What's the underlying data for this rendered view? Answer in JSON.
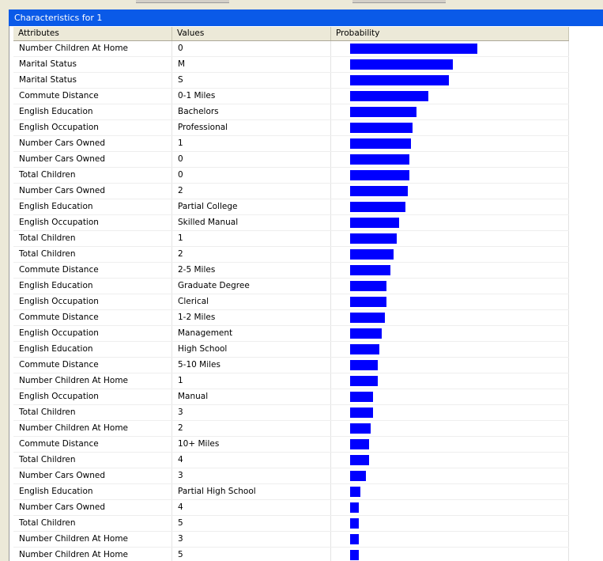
{
  "title": "Characteristics for 1",
  "columns": {
    "attributes": "Attributes",
    "values": "Values",
    "probability": "Probability"
  },
  "colors": {
    "bar": "#0000ff",
    "titlebar": "#0a5ae8"
  },
  "rows": [
    {
      "attribute": "Number Children At Home",
      "value": "0",
      "probability": 0.73
    },
    {
      "attribute": "Marital Status",
      "value": "M",
      "probability": 0.59
    },
    {
      "attribute": "Marital Status",
      "value": "S",
      "probability": 0.57
    },
    {
      "attribute": "Commute Distance",
      "value": "0-1 Miles",
      "probability": 0.45
    },
    {
      "attribute": "English Education",
      "value": "Bachelors",
      "probability": 0.38
    },
    {
      "attribute": "English Occupation",
      "value": "Professional",
      "probability": 0.36
    },
    {
      "attribute": "Number Cars Owned",
      "value": "1",
      "probability": 0.35
    },
    {
      "attribute": "Number Cars Owned",
      "value": "0",
      "probability": 0.34
    },
    {
      "attribute": "Total Children",
      "value": "0",
      "probability": 0.34
    },
    {
      "attribute": "Number Cars Owned",
      "value": "2",
      "probability": 0.33
    },
    {
      "attribute": "English Education",
      "value": "Partial College",
      "probability": 0.32
    },
    {
      "attribute": "English Occupation",
      "value": "Skilled Manual",
      "probability": 0.28
    },
    {
      "attribute": "Total Children",
      "value": "1",
      "probability": 0.27
    },
    {
      "attribute": "Total Children",
      "value": "2",
      "probability": 0.25
    },
    {
      "attribute": "Commute Distance",
      "value": "2-5 Miles",
      "probability": 0.23
    },
    {
      "attribute": "English Education",
      "value": "Graduate Degree",
      "probability": 0.21
    },
    {
      "attribute": "English Occupation",
      "value": "Clerical",
      "probability": 0.21
    },
    {
      "attribute": "Commute Distance",
      "value": "1-2 Miles",
      "probability": 0.2
    },
    {
      "attribute": "English Occupation",
      "value": "Management",
      "probability": 0.18
    },
    {
      "attribute": "English Education",
      "value": "High School",
      "probability": 0.17
    },
    {
      "attribute": "Commute Distance",
      "value": "5-10 Miles",
      "probability": 0.16
    },
    {
      "attribute": "Number Children At Home",
      "value": "1",
      "probability": 0.16
    },
    {
      "attribute": "English Occupation",
      "value": "Manual",
      "probability": 0.13
    },
    {
      "attribute": "Total Children",
      "value": "3",
      "probability": 0.13
    },
    {
      "attribute": "Number Children At Home",
      "value": "2",
      "probability": 0.12
    },
    {
      "attribute": "Commute Distance",
      "value": "10+ Miles",
      "probability": 0.11
    },
    {
      "attribute": "Total Children",
      "value": "4",
      "probability": 0.11
    },
    {
      "attribute": "Number Cars Owned",
      "value": "3",
      "probability": 0.09
    },
    {
      "attribute": "English Education",
      "value": "Partial High School",
      "probability": 0.06
    },
    {
      "attribute": "Number Cars Owned",
      "value": "4",
      "probability": 0.05
    },
    {
      "attribute": "Total Children",
      "value": "5",
      "probability": 0.05
    },
    {
      "attribute": "Number Children At Home",
      "value": "3",
      "probability": 0.05
    },
    {
      "attribute": "Number Children At Home",
      "value": "5",
      "probability": 0.05
    }
  ]
}
